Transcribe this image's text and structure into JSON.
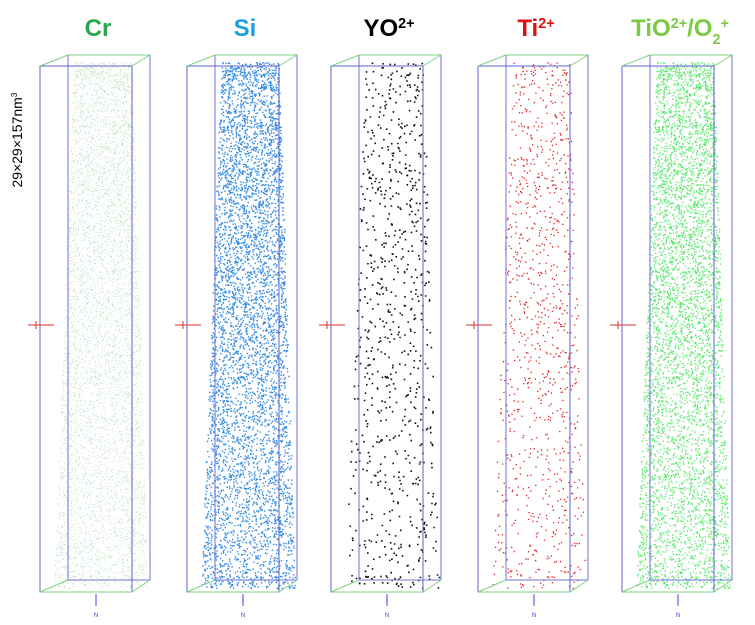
{
  "panels": [
    {
      "title": [
        {
          "text": "Cr"
        }
      ],
      "color": "#2aa64b",
      "dot_color": "#2f8f3c"
    },
    {
      "title": [
        {
          "text": "Si"
        }
      ],
      "color": "#1ba1e2",
      "dot_color": "#1f7fe0"
    },
    {
      "title": [
        {
          "text": "YO"
        },
        {
          "text": "2+",
          "sup": true
        }
      ],
      "color": "#000000",
      "dot_color": "#111111"
    },
    {
      "title": [
        {
          "text": "Ti"
        },
        {
          "text": "2+",
          "sup": true
        }
      ],
      "color": "#e01010",
      "dot_color": "#e02020"
    },
    {
      "title": [
        {
          "text": "TiO"
        },
        {
          "text": "2+",
          "sup": true
        },
        {
          "text": "/O"
        },
        {
          "text": "2",
          "sub": true
        },
        {
          "text": "+",
          "sup": true
        }
      ],
      "color": "#7ac943",
      "dot_color": "#22e03a"
    }
  ],
  "scale_label": [
    {
      "text": "29×29×157nm"
    },
    {
      "text": "3",
      "sup": true
    }
  ],
  "direction_label": "N"
}
